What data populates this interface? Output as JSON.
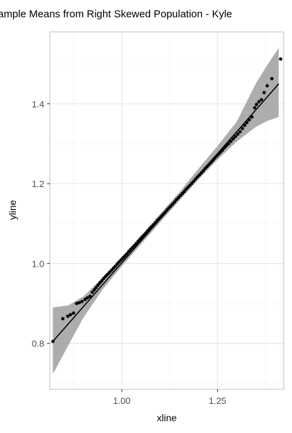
{
  "chart_data": {
    "type": "scatter",
    "title": "ample Means from Right Skewed Population -  Kyle",
    "xlabel": "xline",
    "ylabel": "yline",
    "xlim": [
      0.812,
      1.423
    ],
    "ylim": [
      0.685,
      1.58
    ],
    "x_ticks": [
      1.0,
      1.25
    ],
    "x_tick_labels": [
      "1.00",
      "1.25"
    ],
    "x_minor_ticks": [
      0.875,
      1.125,
      1.375
    ],
    "y_ticks": [
      0.8,
      1.0,
      1.2,
      1.4
    ],
    "y_tick_labels": [
      "0.8",
      "1.0",
      "1.2",
      "1.4"
    ],
    "y_minor_ticks": [
      0.7,
      0.9,
      1.1,
      1.3,
      1.5
    ],
    "grid": true,
    "colors": {
      "points": "#000000",
      "line": "#000000",
      "band": "#999999",
      "grid_major": "#e6e6e6",
      "grid_minor": "#f2f2f2",
      "border": "#bfbfbf"
    },
    "points": [
      [
        0.82,
        0.805
      ],
      [
        0.846,
        0.862
      ],
      [
        0.859,
        0.868
      ],
      [
        0.866,
        0.872
      ],
      [
        0.874,
        0.876
      ],
      [
        0.882,
        0.9
      ],
      [
        0.889,
        0.902
      ],
      [
        0.896,
        0.905
      ],
      [
        0.904,
        0.91
      ],
      [
        0.91,
        0.914
      ],
      [
        0.917,
        0.918
      ],
      [
        0.923,
        0.928
      ],
      [
        0.928,
        0.934
      ],
      [
        0.933,
        0.94
      ],
      [
        0.938,
        0.946
      ],
      [
        0.943,
        0.952
      ],
      [
        0.948,
        0.957
      ],
      [
        0.953,
        0.963
      ],
      [
        0.958,
        0.968
      ],
      [
        0.963,
        0.973
      ],
      [
        0.968,
        0.978
      ],
      [
        0.973,
        0.983
      ],
      [
        0.978,
        0.988
      ],
      [
        0.983,
        0.993
      ],
      [
        0.988,
        0.999
      ],
      [
        0.993,
        1.004
      ],
      [
        0.998,
        1.009
      ],
      [
        1.003,
        1.014
      ],
      [
        1.008,
        1.019
      ],
      [
        1.013,
        1.024
      ],
      [
        1.018,
        1.03
      ],
      [
        1.023,
        1.035
      ],
      [
        1.028,
        1.04
      ],
      [
        1.033,
        1.045
      ],
      [
        1.038,
        1.05
      ],
      [
        1.043,
        1.056
      ],
      [
        1.048,
        1.061
      ],
      [
        1.053,
        1.066
      ],
      [
        1.058,
        1.071
      ],
      [
        1.063,
        1.076
      ],
      [
        1.068,
        1.082
      ],
      [
        1.073,
        1.087
      ],
      [
        1.078,
        1.092
      ],
      [
        1.083,
        1.097
      ],
      [
        1.088,
        1.102
      ],
      [
        1.093,
        1.108
      ],
      [
        1.098,
        1.113
      ],
      [
        1.103,
        1.118
      ],
      [
        1.108,
        1.123
      ],
      [
        1.113,
        1.128
      ],
      [
        1.118,
        1.134
      ],
      [
        1.123,
        1.139
      ],
      [
        1.128,
        1.144
      ],
      [
        1.133,
        1.149
      ],
      [
        1.138,
        1.154
      ],
      [
        1.143,
        1.16
      ],
      [
        1.148,
        1.165
      ],
      [
        1.153,
        1.17
      ],
      [
        1.158,
        1.175
      ],
      [
        1.163,
        1.18
      ],
      [
        1.168,
        1.186
      ],
      [
        1.173,
        1.191
      ],
      [
        1.178,
        1.196
      ],
      [
        1.183,
        1.201
      ],
      [
        1.188,
        1.206
      ],
      [
        1.193,
        1.212
      ],
      [
        1.198,
        1.217
      ],
      [
        1.203,
        1.222
      ],
      [
        1.208,
        1.227
      ],
      [
        1.213,
        1.232
      ],
      [
        1.218,
        1.238
      ],
      [
        1.223,
        1.243
      ],
      [
        1.228,
        1.248
      ],
      [
        1.233,
        1.253
      ],
      [
        1.238,
        1.258
      ],
      [
        1.243,
        1.264
      ],
      [
        1.248,
        1.269
      ],
      [
        1.253,
        1.274
      ],
      [
        1.258,
        1.279
      ],
      [
        1.263,
        1.284
      ],
      [
        1.268,
        1.29
      ],
      [
        1.273,
        1.295
      ],
      [
        1.279,
        1.3
      ],
      [
        1.285,
        1.306
      ],
      [
        1.291,
        1.312
      ],
      [
        1.297,
        1.318
      ],
      [
        1.303,
        1.324
      ],
      [
        1.309,
        1.33
      ],
      [
        1.315,
        1.338
      ],
      [
        1.321,
        1.346
      ],
      [
        1.327,
        1.353
      ],
      [
        1.333,
        1.36
      ],
      [
        1.34,
        1.367
      ],
      [
        1.347,
        1.39
      ],
      [
        1.352,
        1.398
      ],
      [
        1.358,
        1.405
      ],
      [
        1.365,
        1.41
      ],
      [
        1.372,
        1.428
      ],
      [
        1.38,
        1.445
      ],
      [
        1.392,
        1.463
      ],
      [
        1.415,
        1.512
      ]
    ],
    "reference_line": {
      "x": [
        0.82,
        1.41
      ],
      "y": [
        0.805,
        1.45
      ]
    },
    "confidence_band": {
      "x": [
        0.82,
        0.86,
        0.9,
        0.95,
        1.0,
        1.05,
        1.1,
        1.15,
        1.2,
        1.25,
        1.3,
        1.35,
        1.38,
        1.41
      ],
      "lower": [
        0.723,
        0.795,
        0.865,
        0.935,
        0.993,
        1.048,
        1.103,
        1.157,
        1.21,
        1.26,
        1.305,
        1.342,
        1.357,
        1.367
      ],
      "upper": [
        0.89,
        0.895,
        0.918,
        0.965,
        1.016,
        1.07,
        1.124,
        1.178,
        1.237,
        1.294,
        1.355,
        1.45,
        1.497,
        1.54
      ]
    }
  }
}
